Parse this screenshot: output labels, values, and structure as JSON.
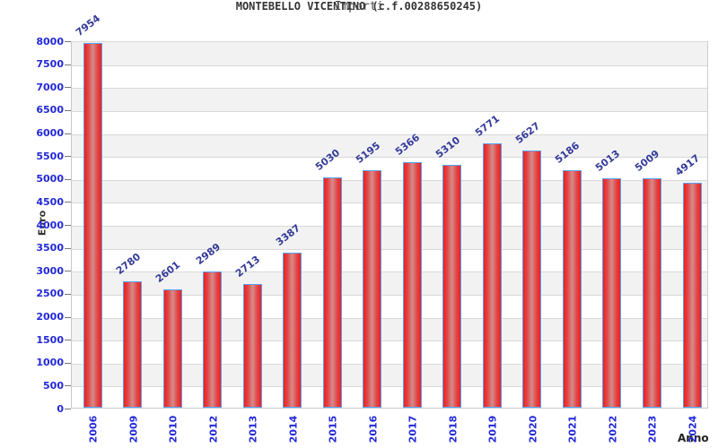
{
  "title": "MONTEBELLO VICENTINO (c.f.00288650245)",
  "subtitle": "Importi",
  "x_axis_label": "Anno",
  "y_axis_label": "Euro",
  "chart_data": {
    "type": "bar",
    "title": "MONTEBELLO VICENTINO (c.f.00288650245)",
    "subtitle": "Importi",
    "xlabel": "Anno",
    "ylabel": "Euro",
    "categories": [
      "2006",
      "2009",
      "2010",
      "2012",
      "2013",
      "2014",
      "2015",
      "2016",
      "2017",
      "2018",
      "2019",
      "2020",
      "2021",
      "2022",
      "2023",
      "2024"
    ],
    "values": [
      7954,
      2780,
      2601,
      2989,
      2713,
      3387,
      5030,
      5195,
      5366,
      5310,
      5771,
      5627,
      5186,
      5013,
      5009,
      4917
    ],
    "ylim": [
      0,
      8000
    ],
    "y_ticks": [
      0,
      500,
      1000,
      1500,
      2000,
      2500,
      3000,
      3500,
      4000,
      4500,
      5000,
      5500,
      6000,
      6500,
      7000,
      7500,
      8000
    ],
    "grid": true,
    "legend": false,
    "bands_alternating": true
  },
  "colors": {
    "bar_edge": "#ee2020",
    "bar_mid": "#d68c8c",
    "bar_border": "#5b9ff0",
    "axis_tick_text": "#2228d8",
    "value_label_text": "#333a99",
    "band_gray": "#f2f2f2",
    "gridline": "#d9d9d9",
    "title_text": "#333333",
    "subtitle_text": "#4a4a4a",
    "axis_title_text": "#333333"
  }
}
